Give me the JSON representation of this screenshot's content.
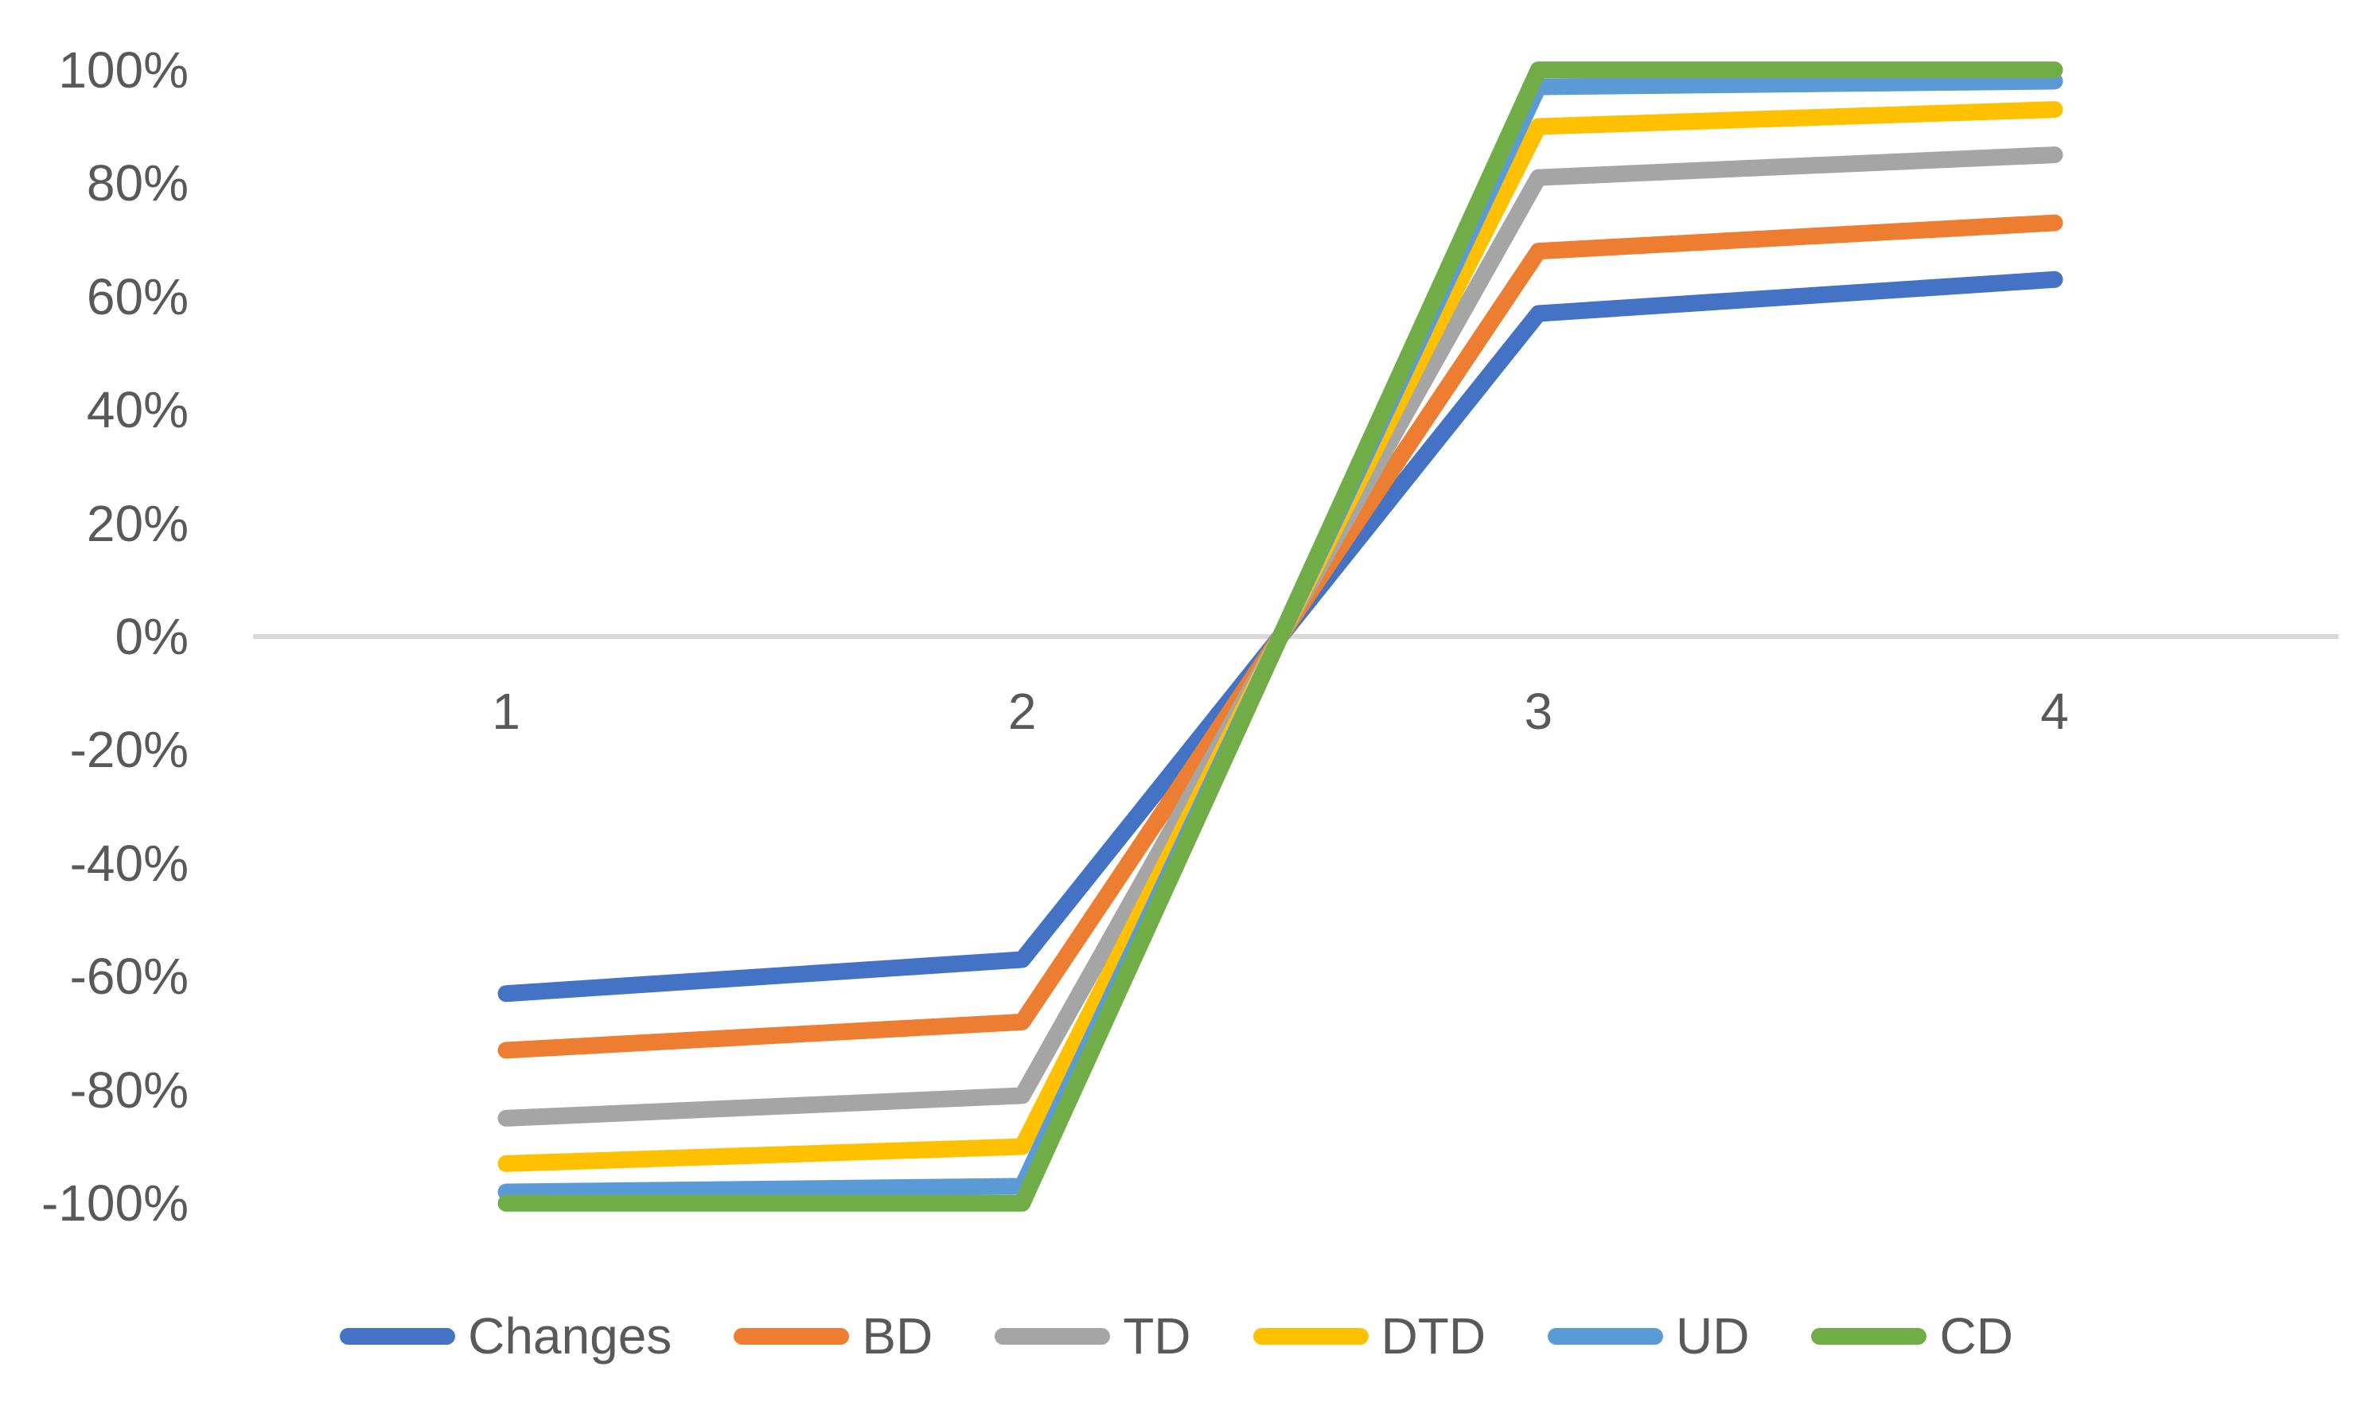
{
  "chart_data": {
    "type": "line",
    "title": "",
    "xlabel": "",
    "ylabel": "",
    "x": [
      1,
      2,
      3,
      4
    ],
    "x_tick_labels": [
      "1",
      "2",
      "3",
      "4"
    ],
    "y_ticks": [
      100,
      80,
      60,
      40,
      20,
      0,
      -20,
      -40,
      -60,
      -80,
      -100
    ],
    "y_tick_labels": [
      "100%",
      "80%",
      "60%",
      "40%",
      "20%",
      "0%",
      "-20%",
      "-40%",
      "-60%",
      "-80%",
      "-100%"
    ],
    "ylim": [
      -100,
      100
    ],
    "grid": "zero-line-only",
    "legend_position": "bottom-center",
    "series": [
      {
        "name": "Changes",
        "color": "#4472C4",
        "values": [
          -63,
          -57,
          57,
          63
        ]
      },
      {
        "name": "BD",
        "color": "#ED7D31",
        "values": [
          -73,
          -68,
          68,
          73
        ]
      },
      {
        "name": "TD",
        "color": "#A5A5A5",
        "values": [
          -85,
          -81,
          81,
          85
        ]
      },
      {
        "name": "DTD",
        "color": "#FFC000",
        "values": [
          -93,
          -90,
          90,
          93
        ]
      },
      {
        "name": "UD",
        "color": "#5B9BD5",
        "values": [
          -98,
          -97,
          97,
          98
        ]
      },
      {
        "name": "CD",
        "color": "#70AD47",
        "values": [
          -100,
          -100,
          100,
          100
        ]
      }
    ]
  },
  "colors": {
    "background": "#FFFFFF",
    "axis_text": "#595959",
    "gridline": "#D9D9D9"
  }
}
